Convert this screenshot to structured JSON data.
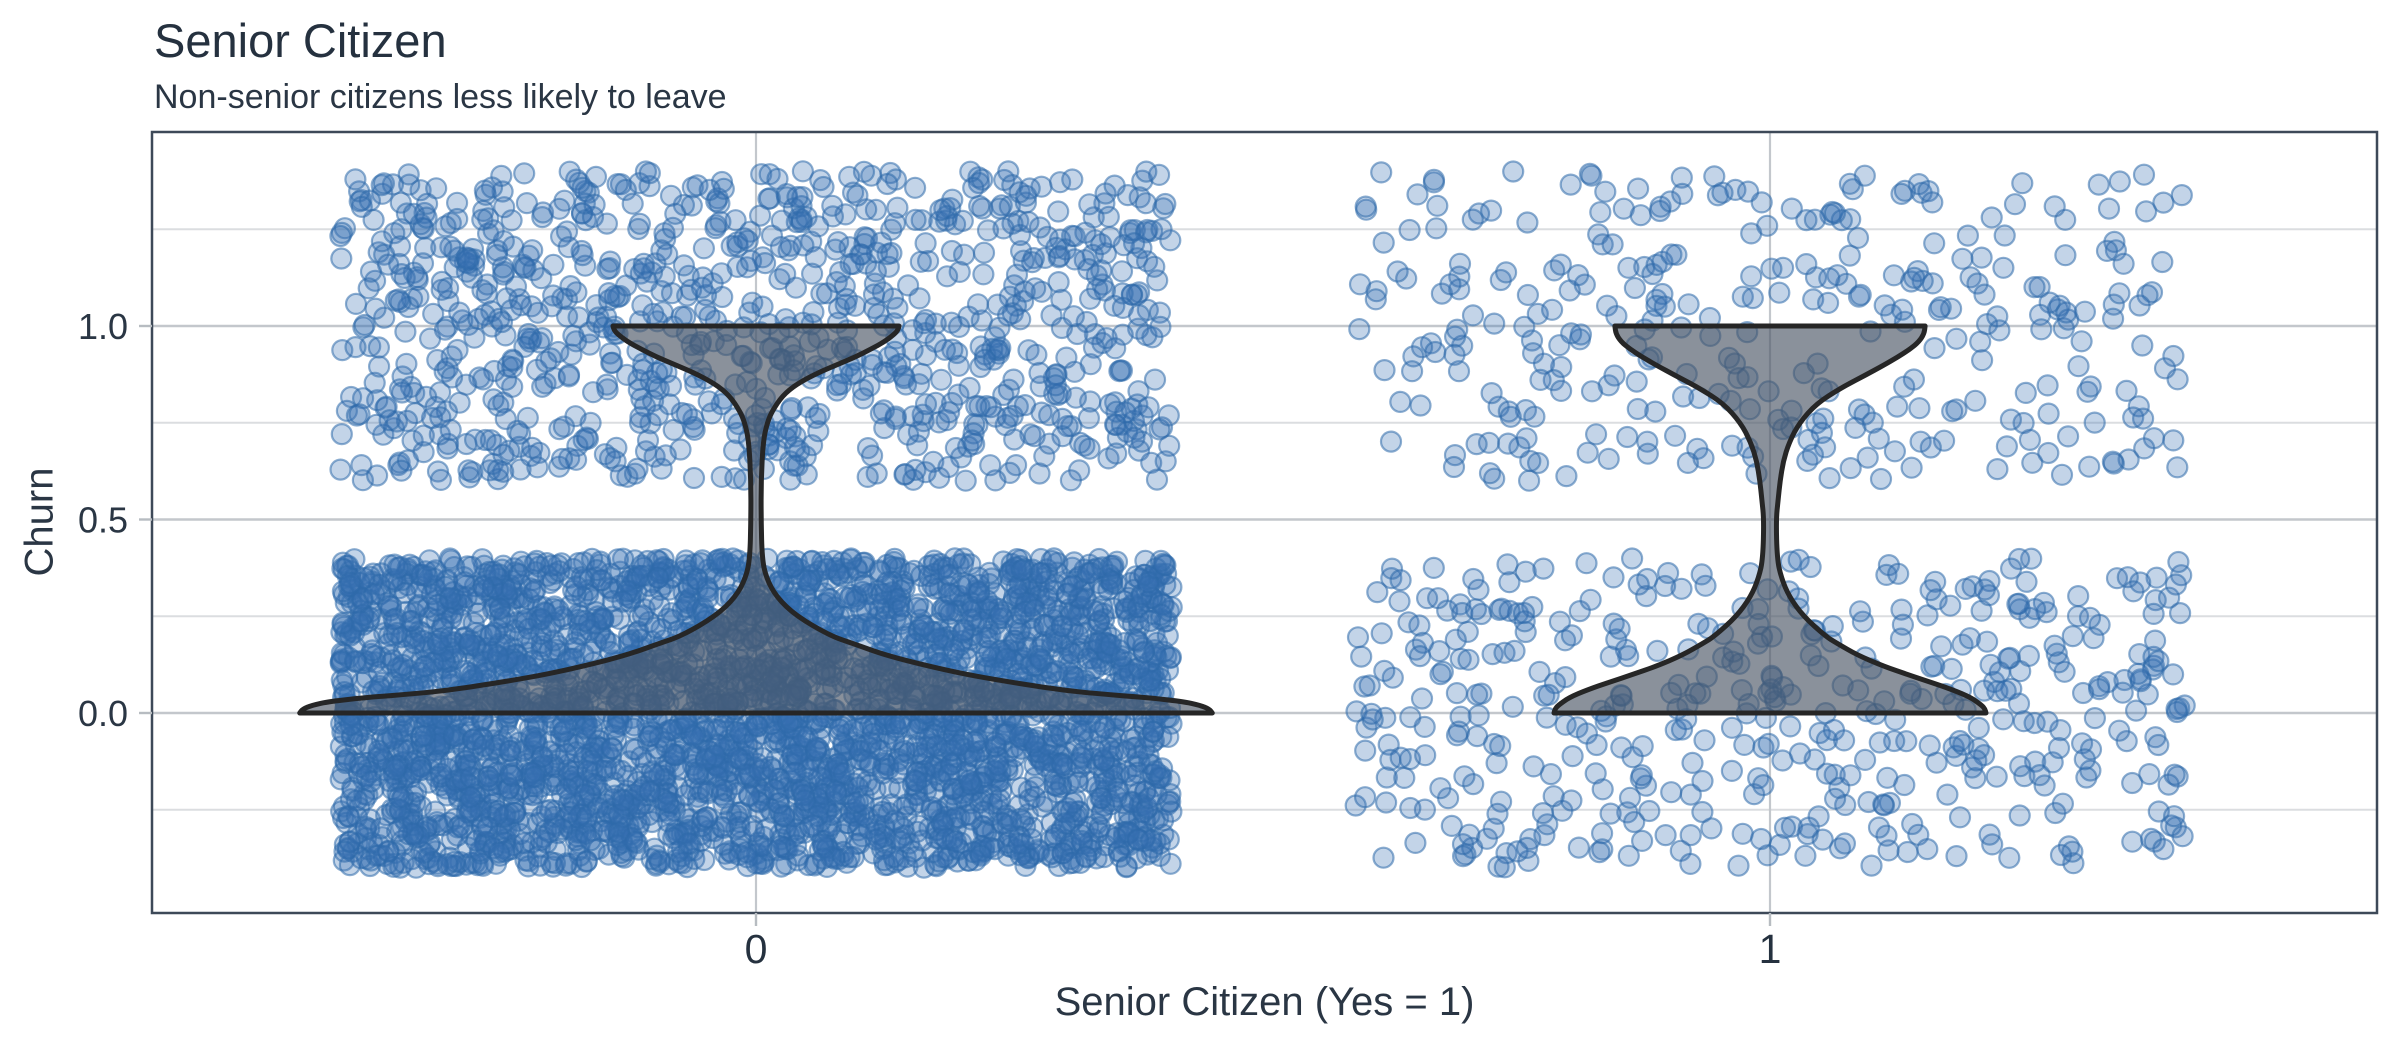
{
  "figure": {
    "title": "Senior Citizen",
    "subtitle": "Non-senior citizens less likely to leave"
  },
  "colors": {
    "title_text": "#25313F",
    "axis_text": "#2A3644",
    "grid_major": "#C3C7CC",
    "grid_minor": "#DBDDE0",
    "panel_border": "#3D4958",
    "tick_mark": "#B7BCC1",
    "point_fill": "#376FB2",
    "point_fill_opacity": 0.3,
    "point_stroke": "#2D69AA",
    "point_stroke_opacity": 0.55,
    "violin_fill": "#4B5665",
    "violin_fill_opacity": 0.65,
    "violin_stroke": "#262626"
  },
  "chart_data": {
    "type": "scatter",
    "overlay": "violin",
    "title": "Senior Citizen",
    "subtitle": "Non-senior citizens less likely to leave",
    "xlabel": "Senior Citizen (Yes = 1)",
    "ylabel": "Churn",
    "x_ticks": [
      0,
      1
    ],
    "x_tick_labels": [
      "0",
      "1"
    ],
    "y_ticks": [
      1.0,
      0.5,
      0.0
    ],
    "y_tick_labels": [
      "1.0",
      "0.5",
      "0.0"
    ],
    "y_minor_ticks": [
      1.25,
      0.75,
      0.25,
      -0.25
    ],
    "xlim": [
      -0.6,
      1.6
    ],
    "ylim": [
      -0.52,
      1.5
    ],
    "grid": "on",
    "legend": "none",
    "jitter": {
      "half_width": 0.41,
      "half_height": 0.4
    },
    "point_radius_px": 10,
    "seed": 7,
    "groups": [
      {
        "x": 0,
        "label": "0",
        "n_churn_no": 3600,
        "n_churn_yes": 950,
        "violin_profile": [
          [
            0.0,
            0.45
          ],
          [
            0.01,
            0.447
          ],
          [
            0.02,
            0.438
          ],
          [
            0.03,
            0.42
          ],
          [
            0.04,
            0.385
          ],
          [
            0.05,
            0.335
          ],
          [
            0.06,
            0.3
          ],
          [
            0.08,
            0.25
          ],
          [
            0.1,
            0.207
          ],
          [
            0.12,
            0.172
          ],
          [
            0.15,
            0.127
          ],
          [
            0.18,
            0.095
          ],
          [
            0.2,
            0.073
          ],
          [
            0.25,
            0.04
          ],
          [
            0.3,
            0.02
          ],
          [
            0.35,
            0.01
          ],
          [
            0.4,
            0.006
          ],
          [
            0.5,
            0.005
          ],
          [
            0.6,
            0.005
          ],
          [
            0.7,
            0.007
          ],
          [
            0.75,
            0.011
          ],
          [
            0.78,
            0.016
          ],
          [
            0.82,
            0.026
          ],
          [
            0.85,
            0.04
          ],
          [
            0.88,
            0.062
          ],
          [
            0.9,
            0.08
          ],
          [
            0.92,
            0.098
          ],
          [
            0.94,
            0.113
          ],
          [
            0.96,
            0.127
          ],
          [
            0.98,
            0.137
          ],
          [
            0.99,
            0.14
          ],
          [
            1.0,
            0.141
          ]
        ]
      },
      {
        "x": 1,
        "label": "1",
        "n_churn_no": 460,
        "n_churn_yes": 330,
        "violin_profile": [
          [
            0.0,
            0.213
          ],
          [
            0.01,
            0.212
          ],
          [
            0.02,
            0.209
          ],
          [
            0.04,
            0.198
          ],
          [
            0.06,
            0.18
          ],
          [
            0.08,
            0.158
          ],
          [
            0.1,
            0.135
          ],
          [
            0.12,
            0.113
          ],
          [
            0.15,
            0.086
          ],
          [
            0.18,
            0.066
          ],
          [
            0.2,
            0.054
          ],
          [
            0.25,
            0.033
          ],
          [
            0.3,
            0.019
          ],
          [
            0.35,
            0.011
          ],
          [
            0.4,
            0.007
          ],
          [
            0.5,
            0.006
          ],
          [
            0.55,
            0.008
          ],
          [
            0.6,
            0.01
          ],
          [
            0.65,
            0.013
          ],
          [
            0.7,
            0.019
          ],
          [
            0.75,
            0.029
          ],
          [
            0.8,
            0.046
          ],
          [
            0.84,
            0.07
          ],
          [
            0.87,
            0.092
          ],
          [
            0.9,
            0.113
          ],
          [
            0.92,
            0.126
          ],
          [
            0.94,
            0.138
          ],
          [
            0.96,
            0.147
          ],
          [
            0.98,
            0.152
          ],
          [
            1.0,
            0.153
          ]
        ]
      }
    ]
  }
}
